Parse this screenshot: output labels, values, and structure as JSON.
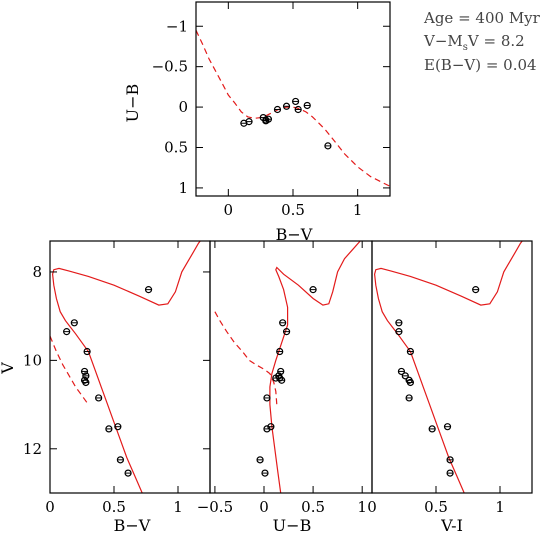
{
  "annotations": {
    "age": "Age = 400 Myr",
    "distance_modulus": "V−M",
    "distance_modulus_sub": "s",
    "distance_modulus_val": "V = 8.2",
    "extinction": "E(B−V) = 0.04"
  },
  "colors": {
    "model": "#e31b1b",
    "points": "#000000"
  },
  "chart_data": [
    {
      "id": "color-color",
      "type": "scatter",
      "xlabel": "B−V",
      "ylabel": "U−B",
      "xlim": [
        -0.25,
        1.25
      ],
      "ylim": [
        1.1,
        -1.3
      ],
      "y_inverted": true,
      "xticks": [
        0,
        0.5,
        1
      ],
      "xtick_labels": [
        "0",
        "0.5",
        "1"
      ],
      "yticks": [
        -1,
        -0.5,
        0,
        0.5,
        1
      ],
      "ytick_labels": [
        "−1",
        "−0.5",
        "0",
        "0.5",
        "1"
      ],
      "model": {
        "style": "dashed",
        "x": [
          -0.25,
          -0.2,
          -0.15,
          -0.1,
          -0.05,
          0.0,
          0.05,
          0.1,
          0.15,
          0.2,
          0.25,
          0.3,
          0.35,
          0.4,
          0.45,
          0.5,
          0.55,
          0.6,
          0.65,
          0.7,
          0.75,
          0.8,
          0.85,
          0.9,
          0.95,
          1.0,
          1.05,
          1.1,
          1.15,
          1.2,
          1.25
        ],
        "y": [
          -0.95,
          -0.78,
          -0.6,
          -0.45,
          -0.3,
          -0.15,
          -0.05,
          0.06,
          0.12,
          0.14,
          0.13,
          0.1,
          0.06,
          0.02,
          0.0,
          0.0,
          0.02,
          0.06,
          0.12,
          0.2,
          0.28,
          0.38,
          0.48,
          0.58,
          0.66,
          0.74,
          0.8,
          0.86,
          0.9,
          0.94,
          0.98
        ]
      },
      "points": {
        "x": [
          0.12,
          0.16,
          0.27,
          0.29,
          0.29,
          0.31,
          0.38,
          0.45,
          0.52,
          0.54,
          0.61,
          0.77
        ],
        "y": [
          0.2,
          0.18,
          0.13,
          0.16,
          0.17,
          0.15,
          0.03,
          -0.01,
          -0.07,
          0.03,
          -0.02,
          0.48
        ]
      }
    },
    {
      "id": "cmd-bv",
      "type": "scatter",
      "xlabel": "B−V",
      "ylabel": "V",
      "xlim": [
        0,
        1.25
      ],
      "ylim": [
        13,
        7.3
      ],
      "y_inverted": true,
      "xticks": [
        0,
        0.5,
        1
      ],
      "xtick_labels": [
        "0",
        "0.5",
        "1"
      ],
      "yticks": [
        8,
        10,
        12
      ],
      "ytick_labels": [
        "8",
        "10",
        "12"
      ],
      "model_solid": {
        "x": [
          0.72,
          0.66,
          0.6,
          0.55,
          0.5,
          0.45,
          0.4,
          0.35,
          0.3,
          0.25,
          0.2,
          0.16,
          0.12,
          0.08,
          0.05,
          0.03,
          0.02,
          0.03,
          0.07,
          0.15,
          0.3,
          0.5,
          0.7,
          0.85,
          0.92,
          0.98,
          1.03,
          1.08,
          1.12,
          1.16,
          1.2,
          1.25
        ],
        "y": [
          13.0,
          12.6,
          12.2,
          11.8,
          11.4,
          11.0,
          10.6,
          10.2,
          9.8,
          9.6,
          9.4,
          9.25,
          9.1,
          8.9,
          8.6,
          8.3,
          8.05,
          7.95,
          7.92,
          7.98,
          8.1,
          8.3,
          8.55,
          8.75,
          8.72,
          8.45,
          8.0,
          7.75,
          7.55,
          7.35,
          7.2,
          7.1
        ]
      },
      "model_dashed": {
        "x": [
          0.0,
          0.05,
          0.1,
          0.15,
          0.2,
          0.25,
          0.3
        ],
        "y": [
          9.45,
          9.8,
          10.1,
          10.35,
          10.6,
          10.8,
          11.0
        ]
      },
      "points": {
        "x": [
          0.13,
          0.19,
          0.29,
          0.27,
          0.28,
          0.27,
          0.28,
          0.38,
          0.46,
          0.53,
          0.55,
          0.61,
          0.77
        ],
        "y": [
          9.35,
          9.15,
          9.8,
          10.25,
          10.35,
          10.45,
          10.5,
          10.85,
          11.55,
          11.5,
          12.25,
          12.55,
          8.4
        ]
      }
    },
    {
      "id": "cmd-ub",
      "type": "scatter",
      "xlabel": "U−B",
      "ylabel": "",
      "xlim": [
        -0.55,
        1.1
      ],
      "ylim": [
        13,
        7.3
      ],
      "y_inverted": true,
      "xticks": [
        -0.5,
        0,
        0.5,
        1
      ],
      "xtick_labels": [
        "−0.5",
        "0",
        "0.5",
        "1"
      ],
      "model_solid": {
        "x": [
          0.17,
          0.14,
          0.11,
          0.08,
          0.06,
          0.06,
          0.08,
          0.12,
          0.18,
          0.24,
          0.24,
          0.2,
          0.15,
          0.12,
          0.13,
          0.2,
          0.35,
          0.5,
          0.6,
          0.66,
          0.7,
          0.75,
          0.82,
          0.9,
          0.98,
          1.05,
          1.1
        ],
        "y": [
          13.0,
          12.5,
          12.0,
          11.5,
          11.0,
          10.6,
          10.3,
          10.0,
          9.6,
          9.2,
          8.8,
          8.4,
          8.1,
          7.95,
          7.9,
          8.05,
          8.3,
          8.6,
          8.75,
          8.72,
          8.45,
          8.0,
          7.7,
          7.5,
          7.3,
          7.15,
          7.05
        ]
      },
      "model_dashed": {
        "x": [
          -0.5,
          -0.45,
          -0.38,
          -0.3,
          -0.22,
          -0.15,
          -0.08,
          0.0,
          0.06,
          0.1,
          0.12,
          0.13
        ],
        "y": [
          8.9,
          9.1,
          9.35,
          9.6,
          9.8,
          10.0,
          10.1,
          10.2,
          10.3,
          10.5,
          10.7,
          11.0
        ]
      },
      "points": {
        "x": [
          0.19,
          0.23,
          0.16,
          0.17,
          0.18,
          0.16,
          0.15,
          0.12,
          0.03,
          0.03,
          0.07,
          -0.04,
          0.01,
          0.5
        ],
        "y": [
          9.15,
          9.35,
          9.8,
          10.25,
          10.45,
          10.4,
          10.35,
          10.4,
          10.85,
          11.55,
          11.5,
          12.25,
          12.55,
          8.4
        ]
      }
    },
    {
      "id": "cmd-vi",
      "type": "scatter",
      "xlabel": "V-I",
      "ylabel": "",
      "xlim": [
        0,
        1.25
      ],
      "ylim": [
        13,
        7.3
      ],
      "y_inverted": true,
      "xticks": [
        0,
        0.5,
        1
      ],
      "xtick_labels": [
        "0",
        "0.5",
        "1"
      ],
      "model_solid": {
        "x": [
          0.72,
          0.66,
          0.6,
          0.55,
          0.5,
          0.45,
          0.4,
          0.35,
          0.3,
          0.25,
          0.2,
          0.16,
          0.12,
          0.08,
          0.05,
          0.03,
          0.02,
          0.03,
          0.07,
          0.15,
          0.3,
          0.5,
          0.7,
          0.85,
          0.92,
          0.98,
          1.03,
          1.08,
          1.12,
          1.16,
          1.2,
          1.25
        ],
        "y": [
          13.0,
          12.6,
          12.2,
          11.8,
          11.4,
          11.0,
          10.6,
          10.2,
          9.8,
          9.6,
          9.4,
          9.25,
          9.1,
          8.9,
          8.6,
          8.3,
          8.05,
          7.95,
          7.92,
          7.98,
          8.1,
          8.3,
          8.55,
          8.75,
          8.72,
          8.45,
          8.0,
          7.75,
          7.55,
          7.35,
          7.2,
          7.1
        ]
      },
      "points": {
        "x": [
          0.21,
          0.21,
          0.3,
          0.23,
          0.26,
          0.29,
          0.3,
          0.29,
          0.47,
          0.59,
          0.61,
          0.61,
          0.81
        ],
        "y": [
          9.15,
          9.35,
          9.8,
          10.25,
          10.35,
          10.45,
          10.5,
          10.85,
          11.55,
          11.5,
          12.25,
          12.55,
          8.4
        ]
      }
    }
  ]
}
